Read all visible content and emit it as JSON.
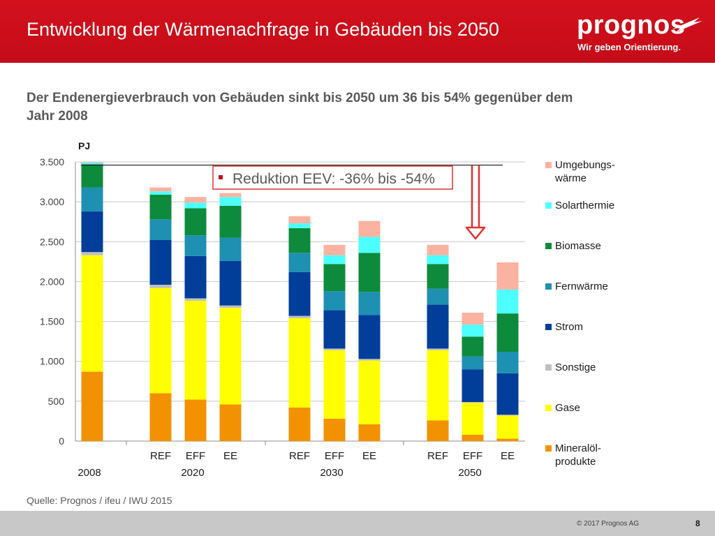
{
  "header": {
    "title": "Entwicklung der Wärmenachfrage in Gebäuden bis 2050",
    "logo_text": "prognos",
    "logo_tagline": "Wir geben Orientierung."
  },
  "subtitle": "Der Endenergieverbrauch von Gebäuden sinkt bis 2050 um 36 bis 54% gegenüber dem Jahr 2008",
  "colors": {
    "header_red": "#c8101c",
    "callout_border": "#e03030",
    "arrow": "#e03030"
  },
  "chart_data": {
    "type": "bar",
    "stacked": true,
    "ylabel": "PJ",
    "ylim": [
      0,
      3500
    ],
    "yticks": [
      0,
      500,
      1000,
      1500,
      2000,
      2500,
      3000,
      3500
    ],
    "ytick_labels": [
      "0",
      "500",
      "1.000",
      "1.500",
      "2.000",
      "2.500",
      "3.000",
      "3.500"
    ],
    "grid": true,
    "legend_position": "right",
    "categories": [
      "2008",
      "2020 REF",
      "2020 EFF",
      "2020 EE",
      "2030 REF",
      "2030 EFF",
      "2030 EE",
      "2050 REF",
      "2050 EFF",
      "2050 EE"
    ],
    "x_labels": [
      {
        "scenario": "",
        "year": "2008"
      },
      {
        "scenario": "REF",
        "year": ""
      },
      {
        "scenario": "EFF",
        "year": "2020"
      },
      {
        "scenario": "EE",
        "year": ""
      },
      {
        "scenario": "REF",
        "year": ""
      },
      {
        "scenario": "EFF",
        "year": "2030"
      },
      {
        "scenario": "EE",
        "year": ""
      },
      {
        "scenario": "REF",
        "year": ""
      },
      {
        "scenario": "EFF",
        "year": "2050"
      },
      {
        "scenario": "EE",
        "year": ""
      }
    ],
    "series": [
      {
        "name": "Mineralöl-\nprodukte",
        "color": "#f39200",
        "values": [
          870,
          600,
          520,
          460,
          420,
          280,
          210,
          260,
          80,
          30
        ]
      },
      {
        "name": "Gase",
        "color": "#ffff00",
        "values": [
          1460,
          1320,
          1240,
          1210,
          1120,
          860,
          800,
          880,
          400,
          290
        ]
      },
      {
        "name": "Sonstige",
        "color": "#bfbfbf",
        "values": [
          40,
          40,
          30,
          30,
          30,
          20,
          20,
          20,
          10,
          10
        ]
      },
      {
        "name": "Strom",
        "color": "#003e99",
        "values": [
          510,
          560,
          530,
          560,
          550,
          480,
          550,
          550,
          410,
          520
        ]
      },
      {
        "name": "Fernwärme",
        "color": "#1e90b2",
        "values": [
          300,
          260,
          260,
          290,
          240,
          240,
          290,
          200,
          160,
          270
        ]
      },
      {
        "name": "Biomasse",
        "color": "#0e8a3c",
        "values": [
          290,
          310,
          340,
          400,
          310,
          340,
          490,
          310,
          250,
          480
        ]
      },
      {
        "name": "Solarthermie",
        "color": "#4dffff",
        "values": [
          20,
          40,
          70,
          110,
          60,
          110,
          200,
          110,
          150,
          300
        ]
      },
      {
        "name": "Umgebungs-\nwärme",
        "color": "#fcb2a0",
        "values": [
          10,
          50,
          70,
          50,
          90,
          130,
          200,
          130,
          150,
          340
        ]
      }
    ],
    "reference_line_value": 3460,
    "annotation": "Reduktion EEV: -36% bis -54%"
  },
  "source": "Quelle: Prognos / ifeu / IWU 2015",
  "footer": {
    "copyright": "© 2017 Prognos AG",
    "page_number": "8"
  }
}
